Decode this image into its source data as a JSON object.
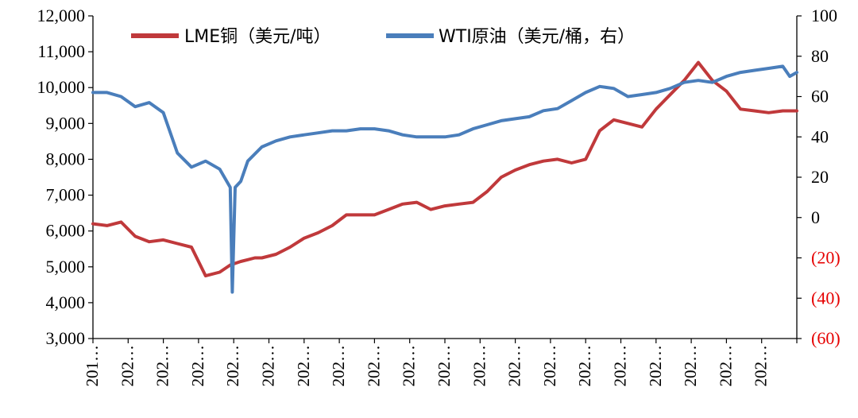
{
  "chart_data": {
    "type": "line",
    "legend": "top",
    "grid": false,
    "left_axis": {
      "ylim": [
        3000,
        12000
      ],
      "tick_labels": [
        "3,000",
        "4,000",
        "5,000",
        "6,000",
        "7,000",
        "8,000",
        "9,000",
        "10,000",
        "11,000",
        "12,000"
      ]
    },
    "right_axis": {
      "ylim": [
        -60,
        100
      ],
      "tick_labels": [
        "(60)",
        "(40)",
        "(20)",
        "0",
        "20",
        "40",
        "60",
        "80",
        "100"
      ],
      "negative_color": "#e60000"
    },
    "x_tick_labels": [
      "201…",
      "202…",
      "202…",
      "202…",
      "202…",
      "202…",
      "202…",
      "202…",
      "202…",
      "202…",
      "202…",
      "202…",
      "202…",
      "202…",
      "202…",
      "202…",
      "202…",
      "202…",
      "202…",
      "202…"
    ],
    "series": [
      {
        "name": "LME铜（美元/吨）",
        "axis": "left",
        "color": "#c0393b",
        "x": [
          0,
          2,
          4,
          6,
          8,
          10,
          12,
          14,
          16,
          18,
          19.5,
          21,
          22,
          23,
          24,
          26,
          28,
          30,
          32,
          34,
          36,
          38,
          40,
          42,
          44,
          46,
          48,
          50,
          52,
          54,
          56,
          58,
          60,
          62,
          64,
          66,
          68,
          70,
          72,
          74,
          76,
          78,
          80,
          82,
          84,
          86,
          88,
          90,
          92,
          94,
          96,
          98,
          100
        ],
        "values": [
          6200,
          6150,
          6250,
          5850,
          5700,
          5750,
          5650,
          5550,
          4750,
          4850,
          5050,
          5150,
          5200,
          5250,
          5250,
          5350,
          5550,
          5800,
          5950,
          6150,
          6450,
          6450,
          6450,
          6600,
          6750,
          6800,
          6600,
          6700,
          6750,
          6800,
          7100,
          7500,
          7700,
          7850,
          7950,
          8000,
          7900,
          8000,
          8800,
          9100,
          9000,
          8900,
          9400,
          9800,
          10200,
          10700,
          10200,
          9900,
          9400,
          9350,
          9300,
          9350,
          9350
        ]
      },
      {
        "name": "WTI原油（美元/桶，右）",
        "axis": "right",
        "color": "#4a7ebb",
        "x": [
          0,
          2,
          4,
          6,
          8,
          10,
          12,
          14,
          16,
          18,
          19.5,
          19.8,
          20.2,
          21,
          22,
          24,
          26,
          28,
          30,
          32,
          34,
          36,
          38,
          40,
          42,
          44,
          46,
          48,
          50,
          52,
          54,
          56,
          58,
          60,
          62,
          64,
          66,
          68,
          70,
          72,
          74,
          76,
          78,
          80,
          82,
          84,
          86,
          88,
          90,
          92,
          94,
          96,
          98,
          99,
          100
        ],
        "values": [
          62,
          62,
          60,
          55,
          57,
          52,
          32,
          25,
          28,
          24,
          15,
          -37,
          15,
          18,
          28,
          35,
          38,
          40,
          41,
          42,
          43,
          43,
          44,
          44,
          43,
          41,
          40,
          40,
          40,
          41,
          44,
          46,
          48,
          49,
          50,
          53,
          54,
          58,
          62,
          65,
          64,
          60,
          61,
          62,
          64,
          67,
          68,
          67,
          70,
          72,
          73,
          74,
          75,
          70,
          72
        ]
      }
    ]
  }
}
